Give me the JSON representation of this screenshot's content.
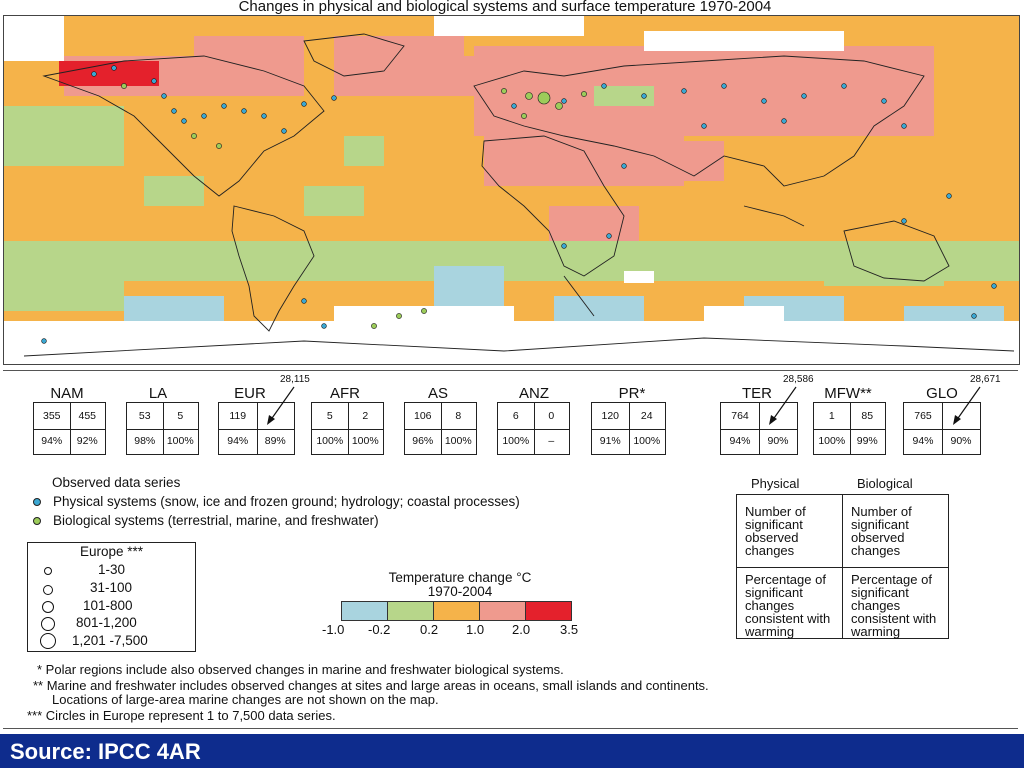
{
  "title": "Changes in physical and biological systems and surface temperature 1970-2004",
  "colors": {
    "temp_bins": [
      "#a9d4df",
      "#b7d68a",
      "#f5b34a",
      "#ef9a8e",
      "#e4212c"
    ],
    "physical_dot": "#3aa7d2",
    "biological_dot": "#9ccc5a",
    "banner": "#0e2c8d"
  },
  "regions": [
    {
      "label": "NAM",
      "physical": "355",
      "biological": "455",
      "pct_physical": "94%",
      "pct_biological": "92%"
    },
    {
      "label": "LA",
      "physical": "53",
      "biological": "5",
      "pct_physical": "98%",
      "pct_biological": "100%"
    },
    {
      "label": "EUR",
      "physical": "119",
      "biological": "",
      "pct_physical": "94%",
      "pct_biological": "89%",
      "total": "28,115"
    },
    {
      "label": "AFR",
      "physical": "5",
      "biological": "2",
      "pct_physical": "100%",
      "pct_biological": "100%"
    },
    {
      "label": "AS",
      "physical": "106",
      "biological": "8",
      "pct_physical": "96%",
      "pct_biological": "100%"
    },
    {
      "label": "ANZ",
      "physical": "6",
      "biological": "0",
      "pct_physical": "100%",
      "pct_biological": "–"
    },
    {
      "label": "PR*",
      "physical": "120",
      "biological": "24",
      "pct_physical": "91%",
      "pct_biological": "100%"
    },
    {
      "label": "TER",
      "physical": "764",
      "biological": "",
      "pct_physical": "94%",
      "pct_biological": "90%",
      "total": "28,586"
    },
    {
      "label": "MFW**",
      "physical": "1",
      "biological": "85",
      "pct_physical": "100%",
      "pct_biological": "99%"
    },
    {
      "label": "GLO",
      "physical": "765",
      "biological": "",
      "pct_physical": "94%",
      "pct_biological": "90%",
      "total": "28,671"
    }
  ],
  "legend": {
    "title": "Observed data series",
    "physical": "Physical systems (snow, ice and frozen ground; hydrology; coastal processes)",
    "biological": "Biological systems (terrestrial, marine, and freshwater)"
  },
  "europe_box": {
    "title": "Europe ***",
    "rows": [
      "1-30",
      "31-100",
      "101-800",
      "801-1,200",
      "1,201 -7,500"
    ]
  },
  "colorbar": {
    "title": "Temperature change °C",
    "subtitle": "1970-2004",
    "ticks": [
      "-1.0",
      "-0.2",
      "0.2",
      "1.0",
      "2.0",
      "3.5"
    ]
  },
  "key": {
    "col1": "Physical",
    "col2": "Biological",
    "top_left": "Number of significant observed changes",
    "top_right": "Number of significant observed changes",
    "bottom_left": "Percentage of significant changes consistent with warming",
    "bottom_right": "Percentage of significant changes consistent with warming"
  },
  "footnotes": [
    "* Polar regions include also observed changes in marine and freshwater biological systems.",
    "** Marine and freshwater includes observed changes at sites and large areas in oceans, small islands and continents.",
    "Locations of large-area marine changes are not shown on the map.",
    "*** Circles in Europe represent 1 to 7,500 data series."
  ],
  "banner": "Source: IPCC 4AR"
}
